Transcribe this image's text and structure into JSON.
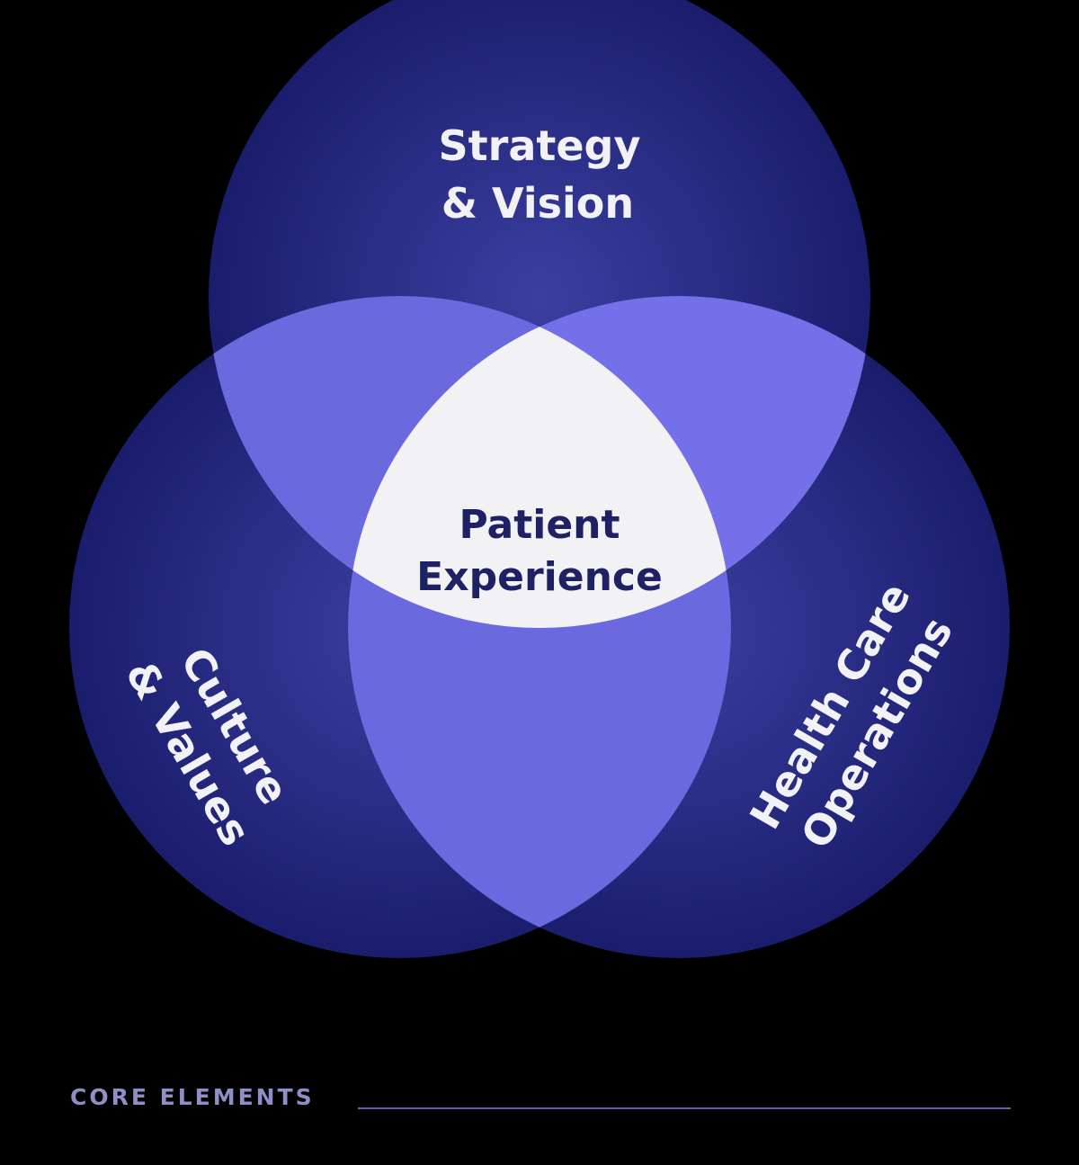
{
  "diagram": {
    "circles": [
      {
        "id": "top",
        "lines": [
          "Strategy",
          "& Vision"
        ]
      },
      {
        "id": "left",
        "lines": [
          "Culture",
          "& Values"
        ]
      },
      {
        "id": "right",
        "lines": [
          "Health Care",
          "Operations"
        ]
      }
    ],
    "center": {
      "lines": [
        "Patient",
        "Experience"
      ]
    }
  },
  "footer": {
    "label": "CORE ELEMENTS"
  },
  "colors": {
    "background": "#000000",
    "circle_dark": "#1c1f6e",
    "circle_mid": "#33378f",
    "overlap": "#6b6ae0",
    "center_fill": "#f2f2f4",
    "center_text": "#1e2164",
    "label_text": "#f2f2f6",
    "footer_text": "#8d8fc6"
  }
}
